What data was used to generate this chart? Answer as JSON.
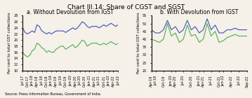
{
  "title": "Chart III.14: Share of CGST and SGST",
  "title_fontsize": 6.5,
  "source_text": "Source: Press Information Bureau, Government of India.",
  "panel_a": {
    "subtitle": "a. Without Devolution from IGST",
    "ylabel": "Per cent to total GST collections",
    "ylim": [
      10,
      28
    ],
    "yticks": [
      10,
      12,
      14,
      16,
      18,
      20,
      22,
      24,
      26,
      28
    ],
    "cgst": [
      16,
      15,
      14.5,
      15,
      16.5,
      17,
      19,
      18.5,
      17.5,
      17,
      16,
      16.5,
      16,
      16,
      17,
      17.5,
      18,
      18,
      17,
      17.5,
      18,
      18.5,
      17.5,
      18,
      19,
      20,
      19.5,
      18,
      18.5,
      19,
      19,
      19,
      18.5,
      18.5,
      19,
      18.5,
      19,
      19.5,
      19,
      18.5,
      19
    ],
    "sgst": [
      24,
      22.5,
      22,
      22.5,
      23,
      22.5,
      25,
      24.5,
      23,
      22.5,
      22,
      22.5,
      22,
      22.5,
      23,
      23,
      23,
      23,
      22.5,
      23,
      23.5,
      24,
      23.5,
      24,
      25,
      26,
      25.5,
      24.5,
      24,
      24.5,
      24.5,
      24.5,
      24,
      24.5,
      25,
      24.5,
      25,
      25.5,
      25,
      24.5,
      25
    ],
    "n_points": 41,
    "xtick_labels": [
      "Jul-17",
      "Oct-17",
      "Jan-18",
      "Apr-18",
      "Jul-18",
      "Oct-18",
      "Jan-19",
      "Apr-19",
      "Jul-19",
      "Oct-19",
      "Jan-20",
      "Apr-20",
      "Jul-20",
      "Oct-20",
      "Jan-21",
      "Apr-21",
      "Jul-21",
      "Oct-21",
      "Jan-22",
      "Apr-22",
      "Jul-22"
    ]
  },
  "panel_b": {
    "subtitle": "b. With Devolution from IGST",
    "ylabel": "Per cent to total GST collections",
    "ylim": [
      20,
      55
    ],
    "yticks": [
      20,
      25,
      30,
      35,
      40,
      45,
      50,
      55
    ],
    "cgst": [
      40,
      39,
      38,
      40,
      50,
      42,
      44,
      38,
      40,
      49,
      42,
      43,
      38,
      40,
      50,
      42,
      45,
      38,
      39,
      41,
      42,
      43,
      42,
      42,
      42
    ],
    "sgst": [
      46,
      44,
      44,
      46,
      52,
      46,
      48,
      44,
      46,
      52,
      46,
      48,
      44,
      46,
      53,
      46,
      49,
      44,
      44,
      46,
      46,
      47,
      46,
      46,
      46
    ],
    "n_points": 25,
    "xtick_labels": [
      "Apr-19",
      "Jul-19",
      "Oct-19",
      "Jan-20",
      "Apr-20",
      "Jul-20",
      "Oct-20",
      "Jan-21",
      "Apr-21",
      "Jul-21",
      "Oct-21",
      "Jan-22",
      "Apr-22",
      "Jul-22",
      "Sep-22"
    ]
  },
  "cgst_color": "#4caf50",
  "sgst_color": "#3f51b5",
  "linewidth": 0.8,
  "bg_color": "#f5f0e8",
  "fig_bg": "#f5f0e8",
  "legend_fontsize": 4.5,
  "subtitle_fontsize": 5.5,
  "ylabel_fontsize": 4.0,
  "tick_fontsize": 3.5
}
